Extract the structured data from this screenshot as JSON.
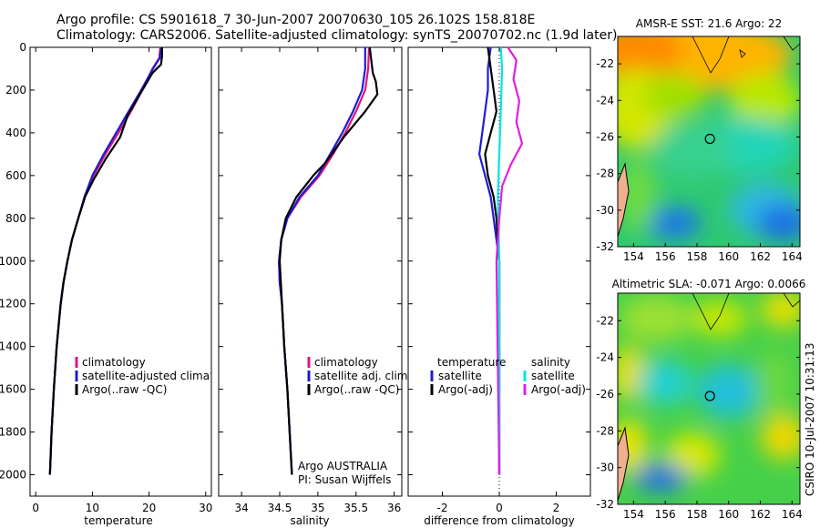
{
  "header": {
    "line1": "Argo profile: CS 5901618_7 30-Jun-2007 20070630_105 26.102S 158.818E",
    "line2": "Climatology: CARS2006. Satellite-adjusted climatology: synTS_20070702.nc (1.9d later)"
  },
  "credit": "CSIRO 10-Jul-2007 10:31:13",
  "colors": {
    "climatology": "#e0147a",
    "satellite": "#1c1cd6",
    "argo": "#000000",
    "sal_sat": "#00e5e5",
    "sal_argo": "#e020e0"
  },
  "chart_data": [
    {
      "type": "line",
      "xlabel": "temperature",
      "xlim": [
        -1,
        31
      ],
      "ylim": [
        2100,
        0
      ],
      "xticks": [
        "0",
        "10",
        "20",
        "30"
      ],
      "yticks": [
        "0",
        "200",
        "400",
        "600",
        "800",
        "1000",
        "1200",
        "1400",
        "1600",
        "1800",
        "2000"
      ],
      "legend": [
        "climatology",
        "satellite-adjusted climatology",
        "Argo(..raw -QC)"
      ],
      "series": [
        {
          "name": "climatology",
          "color": "#e0147a",
          "x": [
            22.0,
            21.8,
            20.6,
            18.8,
            16.8,
            14.6,
            12.3,
            10.2,
            8.7,
            7.5,
            6.4,
            5.6,
            4.9,
            4.4,
            3.7,
            3.2,
            2.8,
            2.5
          ],
          "y": [
            0,
            50,
            100,
            200,
            300,
            400,
            500,
            600,
            700,
            800,
            900,
            1000,
            1100,
            1200,
            1400,
            1600,
            1800,
            2000
          ]
        },
        {
          "name": "satellite-adjusted climatology",
          "color": "#1c1cd6",
          "x": [
            22.1,
            21.9,
            20.7,
            18.6,
            16.4,
            14.2,
            12.0,
            10.0,
            8.6,
            7.5,
            6.4,
            5.6,
            4.9,
            4.4,
            3.7,
            3.2,
            2.8,
            2.5
          ],
          "y": [
            0,
            50,
            100,
            200,
            300,
            400,
            500,
            600,
            700,
            800,
            900,
            1000,
            1100,
            1200,
            1400,
            1600,
            1800,
            2000
          ]
        },
        {
          "name": "Argo(..raw -QC)",
          "color": "#000000",
          "x": [
            22.3,
            22.3,
            22.1,
            20.6,
            18.4,
            16.2,
            14.9,
            12.4,
            10.2,
            8.7,
            7.5,
            6.4,
            5.6,
            4.9,
            4.4,
            3.7,
            3.2,
            2.8,
            2.5
          ],
          "y": [
            0,
            40,
            80,
            120,
            220,
            320,
            420,
            520,
            620,
            700,
            800,
            900,
            1000,
            1100,
            1200,
            1400,
            1600,
            1800,
            2000
          ]
        }
      ]
    },
    {
      "type": "line",
      "xlabel": "salinity",
      "xlim": [
        33.7,
        36.1
      ],
      "ylim": [
        2100,
        0
      ],
      "xticks": [
        "34",
        "34.5",
        "35",
        "35.5",
        "36"
      ],
      "legend": [
        "climatology",
        "satellite adj. clim.",
        "Argo(..raw -QC)"
      ],
      "annotation": [
        "Argo AUSTRALIA",
        "PI: Susan Wijffels"
      ],
      "series": [
        {
          "name": "climatology",
          "color": "#e0147a",
          "x": [
            35.67,
            35.66,
            35.62,
            35.5,
            35.36,
            35.2,
            35.02,
            34.78,
            34.6,
            34.52,
            34.49,
            34.5,
            34.53,
            34.56,
            34.6,
            34.63,
            34.66
          ],
          "y": [
            0,
            100,
            200,
            300,
            400,
            500,
            600,
            700,
            800,
            900,
            1000,
            1100,
            1200,
            1400,
            1600,
            1800,
            2000
          ]
        },
        {
          "name": "satellite adj. clim.",
          "color": "#1c1cd6",
          "x": [
            35.62,
            35.62,
            35.58,
            35.46,
            35.32,
            35.16,
            35.0,
            34.76,
            34.6,
            34.52,
            34.49,
            34.5,
            34.53,
            34.56,
            34.6,
            34.63,
            34.66
          ],
          "y": [
            0,
            100,
            200,
            300,
            400,
            500,
            600,
            700,
            800,
            900,
            1000,
            1100,
            1200,
            1400,
            1600,
            1800,
            2000
          ]
        },
        {
          "name": "Argo(..raw -QC)",
          "color": "#000000",
          "x": [
            35.68,
            35.7,
            35.72,
            35.76,
            35.78,
            35.62,
            35.48,
            35.34,
            35.22,
            35.1,
            34.94,
            34.72,
            34.58,
            34.52,
            34.5,
            34.53,
            34.56,
            34.6,
            34.63,
            34.66
          ],
          "y": [
            0,
            60,
            120,
            160,
            220,
            300,
            360,
            420,
            480,
            540,
            600,
            700,
            800,
            900,
            1000,
            1200,
            1400,
            1600,
            1800,
            2000
          ]
        }
      ]
    },
    {
      "type": "line",
      "xlabel": "difference from climatology",
      "xlim": [
        -3.2,
        3.2
      ],
      "ylim": [
        2100,
        0
      ],
      "xticks": [
        "-2",
        "0",
        "2"
      ],
      "legend_left": {
        "title": "temperature",
        "items": [
          "satellite",
          "Argo(-adj)"
        ]
      },
      "legend_right": {
        "title": "salinity",
        "items": [
          "satellite",
          "Argo(-adj)"
        ]
      },
      "series": [
        {
          "name": "temperature satellite",
          "color": "#1c1cd6",
          "x": [
            -0.3,
            -0.4,
            -0.4,
            -0.5,
            -0.6,
            -0.7,
            -0.5,
            -0.3,
            -0.2,
            -0.1,
            0,
            0
          ],
          "y": [
            0,
            100,
            200,
            300,
            400,
            500,
            600,
            700,
            800,
            900,
            1000,
            2000
          ]
        },
        {
          "name": "temperature Argo(-adj)",
          "color": "#000000",
          "x": [
            -0.4,
            -0.2,
            -0.1,
            -0.3,
            -0.5,
            -0.4,
            -0.2,
            -0.1,
            0,
            0
          ],
          "y": [
            0,
            200,
            300,
            400,
            500,
            600,
            700,
            800,
            1000,
            2000
          ]
        },
        {
          "name": "salinity satellite",
          "color": "#00e5e5",
          "x": [
            0.05,
            0.1,
            0.05,
            0.0,
            -0.05,
            0,
            0
          ],
          "y": [
            0,
            100,
            300,
            500,
            700,
            1000,
            2000
          ]
        },
        {
          "name": "salinity Argo(-adj)",
          "color": "#e020e0",
          "x": [
            0.3,
            0.6,
            0.5,
            0.7,
            0.6,
            0.8,
            0.4,
            0.1,
            0,
            -0.1,
            0
          ],
          "y": [
            0,
            60,
            150,
            250,
            350,
            450,
            550,
            650,
            800,
            1000,
            2000
          ]
        }
      ]
    },
    {
      "type": "heatmap",
      "title": "AMSR-E SST: 21.6 Argo: 22",
      "xticks": [
        "154",
        "156",
        "158",
        "160",
        "162",
        "164"
      ],
      "yticks": [
        "-22",
        "-24",
        "-26",
        "-28",
        "-30",
        "-32"
      ],
      "xlim": [
        153,
        164.5
      ],
      "ylim": [
        -32,
        -20.5
      ],
      "marker": {
        "lon": 158.818,
        "lat": -26.102
      }
    },
    {
      "type": "heatmap",
      "title": "Altimetric SLA: -0.071 Argo: 0.0066",
      "xticks": [
        "154",
        "156",
        "158",
        "160",
        "162",
        "164"
      ],
      "yticks": [
        "-22",
        "-24",
        "-26",
        "-28",
        "-30",
        "-32"
      ],
      "xlim": [
        153,
        164.5
      ],
      "ylim": [
        -32,
        -20.5
      ],
      "marker": {
        "lon": 158.818,
        "lat": -26.102
      }
    }
  ]
}
